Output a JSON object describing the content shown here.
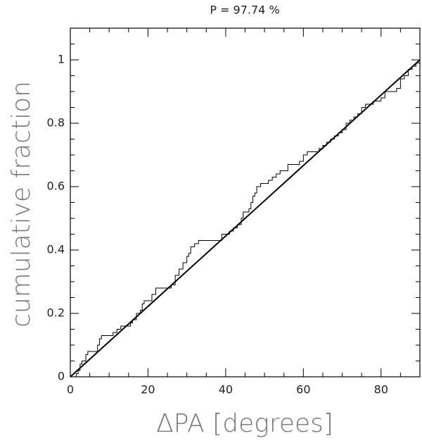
{
  "chart_data": {
    "type": "line",
    "title": "P = 97.74 %",
    "x_label": "ΔPA [degrees]",
    "y_label": "cumulative fraction",
    "xlim": [
      0,
      90
    ],
    "ylim": [
      0,
      1.1
    ],
    "xticks": [
      0,
      20,
      40,
      60,
      80
    ],
    "yticks": [
      0,
      0.2,
      0.4,
      0.6,
      0.8,
      1
    ],
    "xminorticks": [
      5,
      10,
      15,
      25,
      30,
      35,
      45,
      50,
      55,
      65,
      70,
      75,
      85
    ],
    "yminorticks": [
      0.05,
      0.1,
      0.15,
      0.25,
      0.3,
      0.35,
      0.45,
      0.5,
      0.55,
      0.65,
      0.7,
      0.75,
      0.85,
      0.9,
      0.95,
      1.05
    ],
    "series": [
      {
        "style": "step",
        "color": "#000000",
        "x": [
          0,
          1.5,
          2,
          2.5,
          3,
          4,
          4.5,
          7,
          7.5,
          8,
          11,
          12,
          13,
          15.5,
          16,
          17,
          18,
          18.5,
          19,
          21,
          22,
          26,
          27,
          28,
          29,
          30,
          30.5,
          31,
          32,
          33,
          39,
          41,
          42,
          43,
          44,
          44.5,
          46,
          46.5,
          47,
          47.5,
          48,
          49,
          51,
          52,
          53,
          54,
          56,
          59,
          60,
          61,
          64,
          65,
          66,
          67,
          68,
          69,
          70,
          71,
          72,
          73,
          74,
          75,
          76,
          78,
          80,
          81,
          84,
          85,
          86,
          87,
          88,
          89,
          90
        ],
        "values": [
          0,
          0.01,
          0.02,
          0.04,
          0.05,
          0.07,
          0.08,
          0.1,
          0.12,
          0.13,
          0.14,
          0.15,
          0.16,
          0.17,
          0.18,
          0.2,
          0.21,
          0.23,
          0.24,
          0.26,
          0.28,
          0.29,
          0.32,
          0.34,
          0.36,
          0.38,
          0.39,
          0.41,
          0.42,
          0.43,
          0.45,
          0.46,
          0.47,
          0.48,
          0.5,
          0.52,
          0.53,
          0.55,
          0.57,
          0.58,
          0.6,
          0.61,
          0.62,
          0.63,
          0.64,
          0.65,
          0.67,
          0.68,
          0.7,
          0.71,
          0.72,
          0.73,
          0.74,
          0.75,
          0.76,
          0.77,
          0.78,
          0.8,
          0.81,
          0.82,
          0.83,
          0.85,
          0.86,
          0.87,
          0.88,
          0.9,
          0.91,
          0.94,
          0.95,
          0.97,
          0.98,
          0.99,
          1
        ]
      },
      {
        "style": "straight",
        "color": "#000000",
        "x": [
          0,
          90
        ],
        "values": [
          0,
          1
        ]
      }
    ]
  }
}
